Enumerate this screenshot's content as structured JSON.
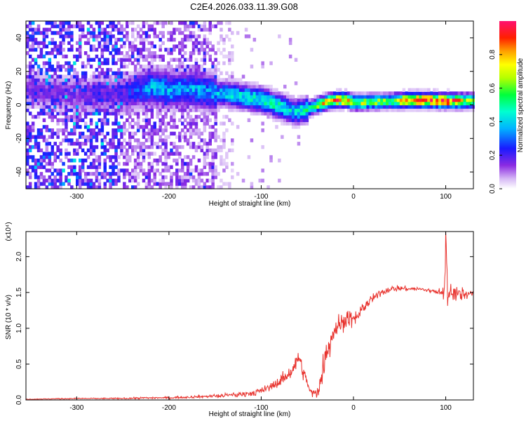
{
  "title": "C2E4.2026.033.11.39.G08",
  "chart_data": [
    {
      "type": "heatmap",
      "xlabel": "Height of straight line (km)",
      "ylabel": "Frequency (Hz)",
      "xlim": [
        -355,
        130
      ],
      "ylim": [
        -50,
        50
      ],
      "x_ticks": [
        -300,
        -200,
        -100,
        0,
        100
      ],
      "y_ticks": [
        -40,
        -20,
        0,
        20,
        40
      ],
      "colorbar": {
        "label": "Normalized spectral amplitude",
        "range": [
          0.0,
          1.0
        ],
        "ticks": [
          0.0,
          0.2,
          0.4,
          0.6,
          0.8
        ]
      },
      "ridge": {
        "x": [
          -345,
          -300,
          -250,
          -220,
          -200,
          -180,
          -160,
          -150,
          -140,
          -120,
          -100,
          -80,
          -65,
          -55,
          -50,
          -40,
          -30,
          -20,
          -10,
          0,
          20,
          40,
          60,
          80,
          100,
          130
        ],
        "y": [
          8,
          5,
          6,
          10,
          8,
          9,
          7,
          6,
          6,
          4,
          2,
          -2,
          -5,
          -4,
          -3,
          -1,
          1,
          2,
          2,
          0.5,
          1,
          1.5,
          2,
          2,
          1.5,
          1.5
        ],
        "amplitude": [
          0.15,
          0.15,
          0.2,
          0.35,
          0.35,
          0.35,
          0.35,
          0.35,
          0.4,
          0.45,
          0.45,
          0.45,
          0.4,
          0.45,
          0.55,
          0.65,
          0.75,
          0.8,
          0.85,
          0.7,
          0.6,
          0.6,
          0.9,
          0.95,
          0.9,
          0.6
        ]
      }
    },
    {
      "type": "line",
      "xlabel": "Height of straight line (km)",
      "ylabel": "SNR (10 * v/v)",
      "y_multiplier": "(x10⁴)",
      "xlim": [
        -355,
        130
      ],
      "ylim": [
        0,
        2.35
      ],
      "x_ticks": [
        -300,
        -200,
        -100,
        0,
        100
      ],
      "y_ticks": [
        0.0,
        0.5,
        1.0,
        1.5,
        2.0
      ],
      "series": [
        {
          "color": "#e8322d",
          "x": [
            -355,
            -300,
            -250,
            -220,
            -200,
            -160,
            -140,
            -120,
            -100,
            -90,
            -80,
            -70,
            -65,
            -62,
            -60,
            -58,
            -55,
            -52,
            -50,
            -48,
            -45,
            -40,
            -35,
            -30,
            -25,
            -20,
            -15,
            -10,
            -5,
            0,
            10,
            20,
            30,
            40,
            50,
            60,
            70,
            80,
            90,
            95,
            98,
            100,
            102,
            105,
            110,
            115,
            120,
            125,
            130
          ],
          "y": [
            0.01,
            0.02,
            0.02,
            0.03,
            0.03,
            0.05,
            0.06,
            0.08,
            0.12,
            0.18,
            0.26,
            0.36,
            0.45,
            0.52,
            0.62,
            0.55,
            0.4,
            0.32,
            0.25,
            0.15,
            0.08,
            0.1,
            0.3,
            0.65,
            0.85,
            1.0,
            1.05,
            1.1,
            1.15,
            1.1,
            1.28,
            1.4,
            1.5,
            1.55,
            1.56,
            1.55,
            1.55,
            1.53,
            1.52,
            1.5,
            1.35,
            2.3,
            1.45,
            1.55,
            1.5,
            1.45,
            1.48,
            1.48,
            1.48
          ],
          "noise": [
            0.005,
            0.008,
            0.01,
            0.015,
            0.015,
            0.02,
            0.03,
            0.04,
            0.05,
            0.06,
            0.07,
            0.09,
            0.1,
            0.12,
            0.15,
            0.12,
            0.1,
            0.08,
            0.06,
            0.05,
            0.05,
            0.1,
            0.18,
            0.22,
            0.2,
            0.18,
            0.15,
            0.12,
            0.12,
            0.1,
            0.08,
            0.06,
            0.05,
            0.04,
            0.04,
            0.03,
            0.03,
            0.03,
            0.04,
            0.05,
            0.25,
            0.3,
            0.15,
            0.12,
            0.15,
            0.15,
            0.1,
            0.04,
            0.03
          ]
        }
      ]
    }
  ]
}
